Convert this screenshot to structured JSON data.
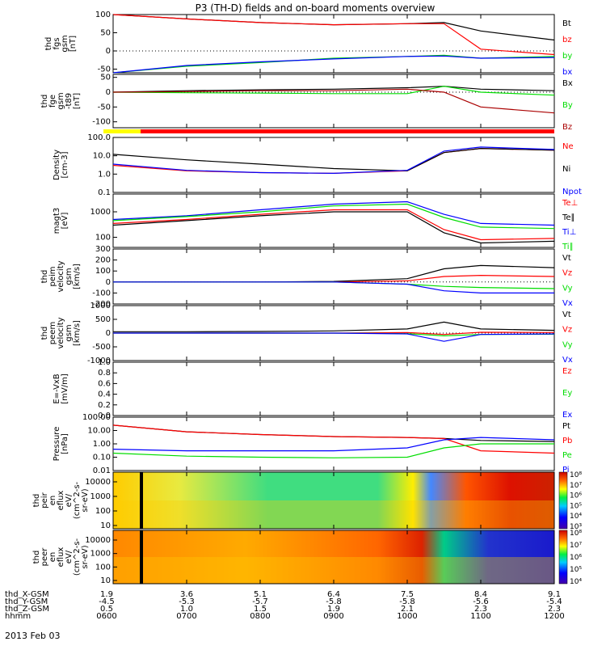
{
  "title": "P3 (TH-D) fields and on-board moments overview",
  "date_label": "2013 Feb 03",
  "colors": {
    "black": "#000000",
    "red": "#ff0000",
    "dark_red": "#aa0000",
    "green": "#00dd00",
    "blue": "#0000ff"
  },
  "chart_data": [
    {
      "type": "line",
      "id": "fgs_mag",
      "ylabel": [
        "thd",
        "fgs",
        "gsm",
        "[nT]"
      ],
      "ylim": [
        -60,
        100
      ],
      "yticks": [
        100,
        50,
        0,
        -50
      ],
      "scale": "linear",
      "x": [
        "0600",
        "0700",
        "0800",
        "0900",
        "1000",
        "1030",
        "1100",
        "1200"
      ],
      "series": [
        {
          "name": "Bt",
          "color": "#000000",
          "values": [
            100,
            88,
            78,
            72,
            75,
            78,
            55,
            30
          ]
        },
        {
          "name": "bz",
          "color": "#ff0000",
          "values": [
            100,
            88,
            78,
            72,
            75,
            75,
            5,
            -10
          ]
        },
        {
          "name": "by",
          "color": "#00dd00",
          "values": [
            -60,
            -42,
            -32,
            -20,
            -15,
            -12,
            -20,
            -15
          ]
        },
        {
          "name": "bx",
          "color": "#0000ff",
          "values": [
            -60,
            -40,
            -30,
            -22,
            -15,
            -14,
            -20,
            -18
          ]
        }
      ]
    },
    {
      "type": "line",
      "id": "fge_mag",
      "ylabel": [
        "thd",
        "fge",
        "gsm",
        "-t89",
        "[nT]"
      ],
      "ylim": [
        -120,
        60
      ],
      "yticks": [
        50,
        0,
        -50,
        -100
      ],
      "scale": "linear",
      "x": [
        "0600",
        "0700",
        "0800",
        "0900",
        "1000",
        "1030",
        "1100",
        "1200"
      ],
      "series": [
        {
          "name": "Bx",
          "color": "#000000",
          "values": [
            0,
            5,
            8,
            10,
            15,
            20,
            10,
            5
          ]
        },
        {
          "name": "By",
          "color": "#00dd00",
          "values": [
            0,
            -2,
            -3,
            -5,
            -5,
            20,
            0,
            -10
          ]
        },
        {
          "name": "Bz",
          "color": "#aa0000",
          "values": [
            0,
            2,
            5,
            5,
            10,
            0,
            -50,
            -70
          ]
        }
      ]
    },
    {
      "type": "line",
      "id": "density",
      "ylabel": [
        "Density",
        "[cm-3]"
      ],
      "ylim": [
        0.1,
        100
      ],
      "yticks": [
        "100.0",
        "10.0",
        "1.0",
        "0.1"
      ],
      "scale": "log",
      "x": [
        "0600",
        "0700",
        "0800",
        "0900",
        "1000",
        "1030",
        "1100",
        "1200"
      ],
      "series": [
        {
          "name": "Ne",
          "color": "#ff0000",
          "values": [
            3,
            1.5,
            1.2,
            1.1,
            1.5,
            15,
            25,
            20
          ]
        },
        {
          "name": "Ni",
          "color": "#000000",
          "values": [
            12,
            6,
            3.5,
            2,
            1.5,
            15,
            25,
            20
          ]
        },
        {
          "name": "Npot",
          "color": "#0000ff",
          "values": [
            3.5,
            1.6,
            1.2,
            1.1,
            1.6,
            18,
            30,
            22
          ]
        }
      ]
    },
    {
      "type": "line",
      "id": "temperature",
      "ylabel": [
        "magt3",
        "[eV]"
      ],
      "ylim": [
        40,
        5000
      ],
      "yticks": [
        "1000",
        "100"
      ],
      "scale": "log",
      "x": [
        "0600",
        "0700",
        "0800",
        "0900",
        "1000",
        "1030",
        "1100",
        "1200"
      ],
      "series": [
        {
          "name": "Te⊥",
          "color": "#ff0000",
          "values": [
            350,
            500,
            800,
            1200,
            1200,
            200,
            80,
            90
          ]
        },
        {
          "name": "Te∥",
          "color": "#000000",
          "values": [
            300,
            450,
            700,
            1000,
            1000,
            150,
            60,
            70
          ]
        },
        {
          "name": "Ti⊥",
          "color": "#0000ff",
          "values": [
            500,
            700,
            1200,
            2000,
            2500,
            800,
            350,
            300
          ]
        },
        {
          "name": "Ti∥",
          "color": "#00dd00",
          "values": [
            450,
            650,
            1000,
            1700,
            2000,
            600,
            250,
            220
          ]
        }
      ]
    },
    {
      "type": "line",
      "id": "ion_velocity",
      "ylabel": [
        "thd",
        "peim",
        "velocity",
        "gsm",
        "[km/s]"
      ],
      "ylim": [
        -200,
        300
      ],
      "yticks": [
        300,
        200,
        100,
        0,
        -100,
        -200
      ],
      "scale": "linear",
      "x": [
        "0600",
        "0700",
        "0800",
        "0900",
        "1000",
        "1030",
        "1100",
        "1200"
      ],
      "series": [
        {
          "name": "Vt",
          "color": "#000000",
          "values": [
            0,
            0,
            0,
            5,
            30,
            120,
            150,
            130
          ]
        },
        {
          "name": "Vz",
          "color": "#ff0000",
          "values": [
            0,
            0,
            0,
            0,
            10,
            50,
            60,
            50
          ]
        },
        {
          "name": "Vy",
          "color": "#00dd00",
          "values": [
            0,
            0,
            0,
            0,
            -20,
            -40,
            -50,
            -60
          ]
        },
        {
          "name": "Vx",
          "color": "#0000ff",
          "values": [
            0,
            0,
            0,
            0,
            -20,
            -80,
            -100,
            -100
          ]
        }
      ]
    },
    {
      "type": "line",
      "id": "electron_velocity",
      "ylabel": [
        "thd",
        "peem",
        "velocity",
        "gsm",
        "[km/s]"
      ],
      "ylim": [
        -1000,
        1000
      ],
      "yticks": [
        1000,
        500,
        0,
        -500,
        -1000
      ],
      "scale": "linear",
      "x": [
        "0600",
        "0700",
        "0800",
        "0900",
        "1000",
        "1030",
        "1100",
        "1200"
      ],
      "series": [
        {
          "name": "Vt",
          "color": "#000000",
          "values": [
            50,
            50,
            60,
            80,
            150,
            400,
            150,
            100
          ]
        },
        {
          "name": "Vz",
          "color": "#ff0000",
          "values": [
            0,
            0,
            0,
            0,
            20,
            -50,
            30,
            20
          ]
        },
        {
          "name": "Vy",
          "color": "#00dd00",
          "values": [
            0,
            0,
            0,
            0,
            -20,
            -100,
            -50,
            -40
          ]
        },
        {
          "name": "Vx",
          "color": "#0000ff",
          "values": [
            0,
            0,
            0,
            0,
            -30,
            -300,
            -50,
            -30
          ]
        }
      ]
    },
    {
      "type": "line",
      "id": "efield",
      "ylabel": [
        "E=-VxB",
        "[mV/m]"
      ],
      "ylim": [
        0,
        1
      ],
      "yticks": [
        "1.0",
        "0.8",
        "0.6",
        "0.4",
        "0.2",
        "0.0"
      ],
      "scale": "linear",
      "x": [],
      "series": [
        {
          "name": "Ez",
          "color": "#ff0000",
          "values": []
        },
        {
          "name": "Ey",
          "color": "#00dd00",
          "values": []
        },
        {
          "name": "Ex",
          "color": "#0000ff",
          "values": []
        }
      ]
    },
    {
      "type": "line",
      "id": "pressure",
      "ylabel": [
        "Pressure",
        "[nPa]"
      ],
      "ylim": [
        0.01,
        100
      ],
      "yticks": [
        "100.00",
        "10.00",
        "1.00",
        "0.10",
        "0.01"
      ],
      "scale": "log",
      "x": [
        "0600",
        "0700",
        "0800",
        "0900",
        "1000",
        "1030",
        "1100",
        "1200"
      ],
      "series": [
        {
          "name": "Pt",
          "color": "#000000",
          "values": [
            25,
            8,
            5,
            3.5,
            3,
            2.5,
            1.8,
            1.5
          ]
        },
        {
          "name": "Pb",
          "color": "#ff0000",
          "values": [
            25,
            8,
            5,
            3.5,
            3,
            2.5,
            0.3,
            0.2
          ]
        },
        {
          "name": "Pe",
          "color": "#00dd00",
          "values": [
            0.2,
            0.12,
            0.1,
            0.09,
            0.1,
            0.5,
            1,
            1
          ]
        },
        {
          "name": "Pi",
          "color": "#0000ff",
          "values": [
            0.4,
            0.3,
            0.3,
            0.3,
            0.5,
            2,
            3,
            2
          ]
        }
      ]
    },
    {
      "type": "heatmap",
      "id": "ion_spectrogram",
      "ylabel": [
        "thd",
        "peir",
        "en",
        "eflux",
        "eV/",
        "(cm^2-s-",
        "sr-eV)"
      ],
      "yticks": [
        "10000",
        "1000",
        "100",
        "10"
      ],
      "colorbar": [
        "10⁸",
        "10⁷",
        "10⁶",
        "10⁵",
        "10⁴",
        "10³"
      ],
      "x": [
        "0600",
        "0800",
        "1000",
        "1030",
        "1100",
        "1200"
      ]
    },
    {
      "type": "heatmap",
      "id": "electron_spectrogram",
      "ylabel": [
        "thd",
        "peer",
        "en",
        "eflux",
        "eV/",
        "(cm^2-s-",
        "sr-eV)"
      ],
      "yticks": [
        "10000",
        "1000",
        "100",
        "10"
      ],
      "colorbar": [
        "10⁸",
        "10⁷",
        "10⁶",
        "10⁵",
        "10⁴"
      ],
      "x": [
        "0600",
        "0800",
        "1000",
        "1030",
        "1100",
        "1200"
      ]
    }
  ],
  "footer": {
    "row_labels": [
      "thd_X-GSM",
      "thd_Y-GSM",
      "thd_Z-GSM",
      "hhmm"
    ],
    "columns": [
      [
        "1.9",
        "-4.5",
        "0.5",
        "0600"
      ],
      [
        "3.6",
        "-5.3",
        "1.0",
        "0700"
      ],
      [
        "5.1",
        "-5.7",
        "1.5",
        "0800"
      ],
      [
        "6.4",
        "-5.8",
        "1.9",
        "0900"
      ],
      [
        "7.5",
        "-5.8",
        "2.1",
        "1000"
      ],
      [
        "8.4",
        "-5.6",
        "2.3",
        "1100"
      ],
      [
        "9.1",
        "-5.4",
        "2.3",
        "1200"
      ]
    ]
  }
}
